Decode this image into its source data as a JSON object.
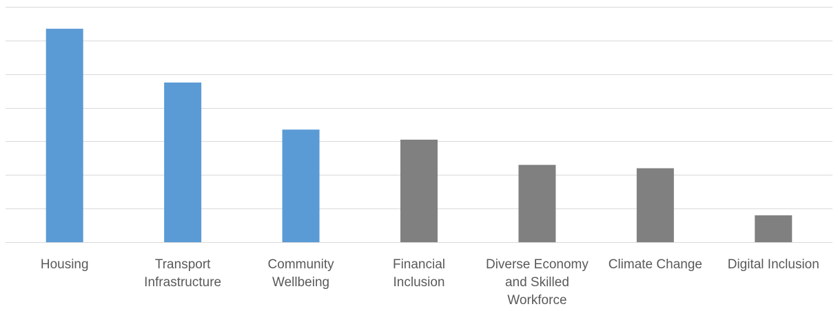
{
  "chart_data": {
    "type": "bar",
    "title": "",
    "xlabel": "",
    "ylabel": "",
    "ylim": [
      0,
      7
    ],
    "grid": true,
    "y_tick_labels_visible": false,
    "categories": [
      "Housing",
      "Transport Infrastructure",
      "Community Wellbeing",
      "Financial Inclusion",
      "Diverse Economy and Skilled Workforce",
      "Climate Change",
      "Digital Inclusion"
    ],
    "category_label_lines": [
      [
        "Housing"
      ],
      [
        "Transport",
        "Infrastructure"
      ],
      [
        "Community",
        "Wellbeing"
      ],
      [
        "Financial",
        "Inclusion"
      ],
      [
        "Diverse Economy",
        "and Skilled",
        "Workforce"
      ],
      [
        "Climate Change"
      ],
      [
        "Digital Inclusion"
      ]
    ],
    "values": [
      6.35,
      4.75,
      3.35,
      3.05,
      2.3,
      2.2,
      0.8
    ],
    "bar_colors": [
      "#5b9bd5",
      "#5b9bd5",
      "#5b9bd5",
      "#808080",
      "#808080",
      "#808080",
      "#808080"
    ],
    "colors": {
      "highlight": "#5b9bd5",
      "other": "#808080",
      "grid": "#d9d9d9",
      "label": "#595959"
    }
  }
}
